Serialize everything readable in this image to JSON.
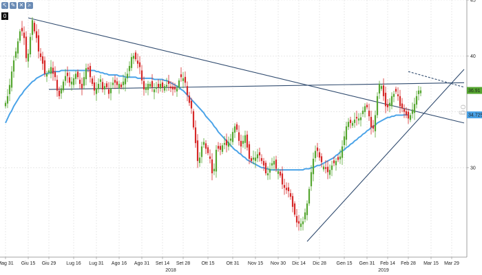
{
  "toolbar": {
    "icons": [
      "pointer-icon",
      "pencil-icon",
      "delete-icon",
      "zoom-icon"
    ],
    "badge": "0"
  },
  "watermark_text": "og",
  "colors": {
    "up": "#55a630",
    "down": "#d62828",
    "ma": "#4aa3e8",
    "trend": "#2f4a6e",
    "grid": "#d9d9d9"
  },
  "chart_data": {
    "type": "candlestick",
    "ylim": [
      22,
      45
    ],
    "yticks": [
      30,
      35,
      40,
      45
    ],
    "y_tick_labels": [
      "30",
      "",
      "40",
      "45"
    ],
    "x_tick_labels": [
      "Mag 31",
      "Giu 15",
      "Giu 29",
      "Lug 16",
      "Lug 31",
      "Ago 16",
      "Ago 31",
      "Set 14",
      "Set 28",
      "Ott 15",
      "Ott 31",
      "Nov 15",
      "Nov 30",
      "Dic 14",
      "Dic 28",
      "Gen 15",
      "Gen 31",
      "Feb 14",
      "Feb 28",
      "Mar 15",
      "Mar 29"
    ],
    "x_tick_index": [
      0,
      11,
      21,
      33,
      44,
      55,
      66,
      76,
      86,
      98,
      110,
      121,
      132,
      142,
      152,
      164,
      175,
      185,
      195,
      206,
      216
    ],
    "year_labels": [
      {
        "label": "2018",
        "index": 80
      },
      {
        "label": "2019",
        "index": 183
      }
    ],
    "price_labels": [
      {
        "value": "36.91",
        "y": 36.91,
        "bg": "#55a630"
      },
      {
        "value": "34.7258",
        "y": 34.7258,
        "bg": "#4aa3e8"
      }
    ],
    "series": [
      {
        "name": "",
        "kind": "candles",
        "close": [
          35.8,
          36.4,
          37.4,
          38.6,
          39.6,
          40.4,
          41.3,
          42.2,
          42.2,
          41.6,
          39.8,
          40.2,
          41.7,
          43.2,
          42.2,
          41.6,
          40.4,
          39.9,
          39.3,
          38.4,
          38.4,
          38.7,
          39.0,
          38.4,
          38.1,
          36.9,
          36.4,
          37.1,
          37.7,
          38.2,
          38.2,
          37.6,
          37.7,
          38.0,
          38.4,
          38.1,
          37.5,
          37.1,
          38.1,
          38.9,
          38.8,
          38.1,
          37.5,
          36.9,
          37.1,
          37.5,
          37.9,
          37.0,
          37.3,
          37.2,
          36.6,
          37.1,
          37.6,
          37.6,
          37.4,
          37.5,
          37.2,
          37.7,
          38.0,
          38.4,
          39.1,
          39.9,
          40.0,
          39.7,
          39.3,
          39.0,
          37.8,
          37.0,
          37.2,
          37.5,
          37.5,
          37.2,
          37.0,
          37.2,
          37.2,
          37.5,
          37.2,
          37.3,
          37.4,
          37.5,
          37.1,
          37.0,
          37.0,
          37.1,
          37.8,
          38.1,
          38.0,
          37.6,
          36.5,
          35.8,
          35.3,
          33.6,
          32.2,
          30.6,
          30.9,
          31.9,
          32.3,
          31.7,
          31.3,
          30.8,
          29.5,
          29.9,
          31.6,
          31.7,
          31.6,
          32.0,
          32.2,
          32.0,
          32.3,
          32.6,
          33.2,
          33.7,
          33.4,
          32.4,
          31.9,
          32.4,
          32.9,
          31.8,
          30.8,
          30.6,
          30.9,
          30.9,
          31.2,
          31.1,
          30.6,
          30.2,
          29.5,
          29.5,
          29.9,
          30.4,
          30.6,
          29.9,
          29.7,
          29.3,
          28.5,
          28.2,
          28.0,
          27.9,
          27.4,
          26.5,
          25.8,
          25.1,
          25.0,
          25.0,
          25.2,
          26.0,
          26.8,
          28.1,
          29.6,
          30.8,
          31.5,
          31.5,
          30.9,
          30.5,
          30.1,
          29.9,
          29.6,
          29.8,
          30.2,
          30.4,
          30.6,
          30.7,
          31.0,
          31.9,
          32.8,
          33.7,
          34.1,
          34.0,
          34.0,
          34.3,
          34.4,
          34.4,
          34.5,
          35.1,
          35.5,
          35.4,
          34.6,
          33.6,
          33.5,
          34.7,
          36.4,
          37.5,
          37.3,
          36.4,
          35.5,
          35.4,
          35.8,
          36.4,
          36.6,
          36.8,
          36.4,
          35.5,
          35.3,
          35.0,
          34.7,
          34.4,
          34.7,
          35.2,
          35.7,
          36.4,
          36.9,
          36.91
        ]
      },
      {
        "name": "",
        "kind": "moving-average",
        "values": [
          34.0,
          34.4,
          34.8,
          35.1,
          35.5,
          35.8,
          36.1,
          36.4,
          36.6,
          36.9,
          37.1,
          37.3,
          37.5,
          37.7,
          37.8,
          38.0,
          38.1,
          38.2,
          38.3,
          38.4,
          38.4,
          38.5,
          38.5,
          38.6,
          38.6,
          38.6,
          38.6,
          38.7,
          38.7,
          38.7,
          38.7,
          38.7,
          38.7,
          38.7,
          38.7,
          38.7,
          38.7,
          38.7,
          38.7,
          38.7,
          38.7,
          38.7,
          38.7,
          38.7,
          38.6,
          38.6,
          38.5,
          38.5,
          38.4,
          38.4,
          38.3,
          38.3,
          38.3,
          38.3,
          38.3,
          38.2,
          38.2,
          38.2,
          38.1,
          38.1,
          38.1,
          38.1,
          38.1,
          38.1,
          38.0,
          38.0,
          38.0,
          38.0,
          38.0,
          38.0,
          38.0,
          38.0,
          37.9,
          37.9,
          37.9,
          37.9,
          37.9,
          37.8,
          37.8,
          37.7,
          37.6,
          37.5,
          37.4,
          37.3,
          37.2,
          37.0,
          36.9,
          36.7,
          36.5,
          36.3,
          36.1,
          35.9,
          35.7,
          35.5,
          35.3,
          35.1,
          34.9,
          34.6,
          34.4,
          34.2,
          34.0,
          33.7,
          33.5,
          33.2,
          33.0,
          32.8,
          32.6,
          32.4,
          32.2,
          32.0,
          31.8,
          31.6,
          31.5,
          31.3,
          31.2,
          31.0,
          30.9,
          30.7,
          30.6,
          30.5,
          30.4,
          30.3,
          30.2,
          30.1,
          30.0,
          30.0,
          29.9,
          29.9,
          29.8,
          29.8,
          29.8,
          29.8,
          29.8,
          29.8,
          29.8,
          29.8,
          29.8,
          29.8,
          29.8,
          29.8,
          29.8,
          29.8,
          29.8,
          29.8,
          29.8,
          29.9,
          29.9,
          29.9,
          30.0,
          30.0,
          30.1,
          30.2,
          30.2,
          30.3,
          30.4,
          30.5,
          30.6,
          30.7,
          30.8,
          30.9,
          31.1,
          31.2,
          31.4,
          31.5,
          31.6,
          31.8,
          31.9,
          32.1,
          32.2,
          32.4,
          32.5,
          32.7,
          32.8,
          33.0,
          33.1,
          33.3,
          33.4,
          33.6,
          33.7,
          33.8,
          34.0,
          34.1,
          34.2,
          34.3,
          34.4,
          34.5,
          34.5,
          34.6,
          34.6,
          34.7,
          34.7,
          34.7,
          34.7,
          34.72,
          34.72,
          34.7258
        ]
      },
      {
        "name": "",
        "kind": "trendlines",
        "lines": [
          {
            "from": [
              11,
              43.4
            ],
            "to": [
              222,
              34.0
            ],
            "style": "solid"
          },
          {
            "from": [
              21,
              37.0
            ],
            "to": [
              222,
              37.6
            ],
            "style": "solid"
          },
          {
            "from": [
              146,
              23.4
            ],
            "to": [
              222,
              38.8
            ],
            "style": "solid"
          },
          {
            "from": [
              195,
              38.6
            ],
            "to": [
              222,
              37.2
            ],
            "style": "dashed"
          }
        ]
      }
    ],
    "grid": true,
    "xlabel": "",
    "ylabel": ""
  }
}
